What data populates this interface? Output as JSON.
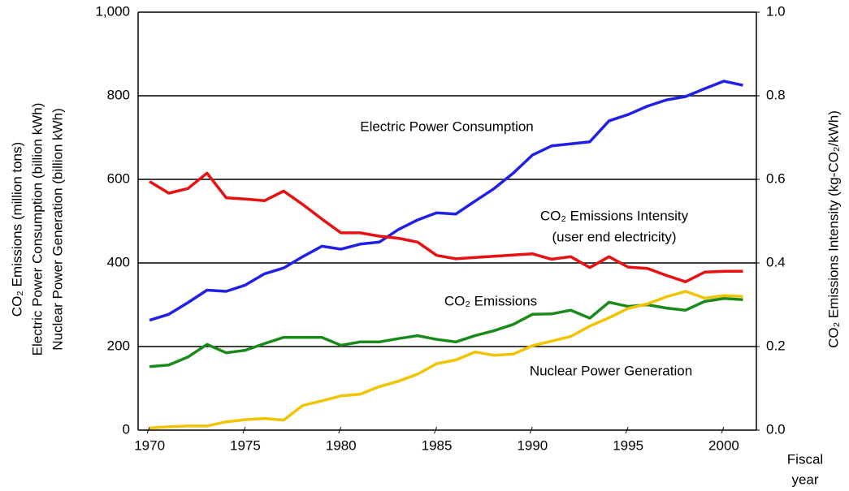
{
  "chart_data": {
    "type": "line",
    "y_label": [
      "CO₂ Emissions (million tons)",
      "Electric Power Consumption (billion kWh)",
      "Nuclear Power Generation (billion kWh)"
    ],
    "y2_label": "CO₂ Emissions Intensity (kg-CO₂/kWh)",
    "x_label": [
      "Fiscal",
      "year"
    ],
    "annotations": [
      "Electric Power Consumption",
      "CO₂ Emissions Intensity",
      "(user end electricity)",
      "CO₂ Emissions",
      "Nuclear Power Generation"
    ],
    "x": [
      1970,
      1971,
      1972,
      1973,
      1974,
      1975,
      1976,
      1977,
      1978,
      1979,
      1980,
      1981,
      1982,
      1983,
      1984,
      1985,
      1986,
      1987,
      1988,
      1989,
      1990,
      1991,
      1992,
      1993,
      1994,
      1995,
      1996,
      1997,
      1998,
      1999,
      2000,
      2001
    ],
    "xlim": [
      1969.4,
      2001.7
    ],
    "xticks": [
      1970,
      1975,
      1980,
      1985,
      1990,
      1995,
      2000
    ],
    "ylim": [
      0,
      1000
    ],
    "yticks": [
      0,
      200,
      400,
      600,
      800,
      {
        "value": 1000,
        "label": "1,000"
      }
    ],
    "y2lim": [
      0,
      1
    ],
    "y2ticks": [
      {
        "value": 0,
        "label": "0.0"
      },
      0.2,
      0.4,
      0.6,
      0.8,
      {
        "value": 1,
        "label": "1.0"
      }
    ],
    "grid": true,
    "series": [
      {
        "name": "Electric Power Consumption",
        "color": "#2020e8",
        "values": [
          263,
          277,
          305,
          335,
          332,
          347,
          374,
          388,
          415,
          440,
          433,
          445,
          450,
          480,
          503,
          520,
          517,
          548,
          578,
          615,
          658,
          680,
          685,
          690,
          740,
          755,
          775,
          790,
          798,
          817,
          835,
          825
        ]
      },
      {
        "name": "CO₂ Emissions Intensity",
        "color": "#e81010",
        "axis": "y2",
        "values": [
          0.595,
          0.567,
          0.578,
          0.615,
          0.556,
          0.553,
          0.549,
          0.572,
          0.54,
          0.505,
          0.472,
          0.472,
          0.464,
          0.459,
          0.45,
          0.418,
          0.41,
          0.413,
          0.416,
          0.419,
          0.422,
          0.409,
          0.415,
          0.389,
          0.415,
          0.39,
          0.387,
          0.37,
          0.355,
          0.378,
          0.38,
          0.38
        ]
      },
      {
        "name": "CO₂ Emissions",
        "color": "#1a8a1a",
        "values": [
          152,
          156,
          175,
          205,
          185,
          191,
          207,
          222,
          222,
          222,
          203,
          211,
          211,
          219,
          226,
          217,
          211,
          226,
          238,
          253,
          277,
          278,
          287,
          268,
          306,
          296,
          300,
          292,
          287,
          308,
          315,
          312
        ]
      },
      {
        "name": "Nuclear Power Generation",
        "color": "#f0c400",
        "values": [
          5,
          8,
          10,
          10,
          20,
          25,
          28,
          24,
          59,
          70,
          82,
          86,
          104,
          117,
          134,
          159,
          168,
          187,
          179,
          182,
          202,
          213,
          224,
          249,
          269,
          291,
          302,
          319,
          332,
          316,
          322,
          320
        ]
      }
    ]
  }
}
